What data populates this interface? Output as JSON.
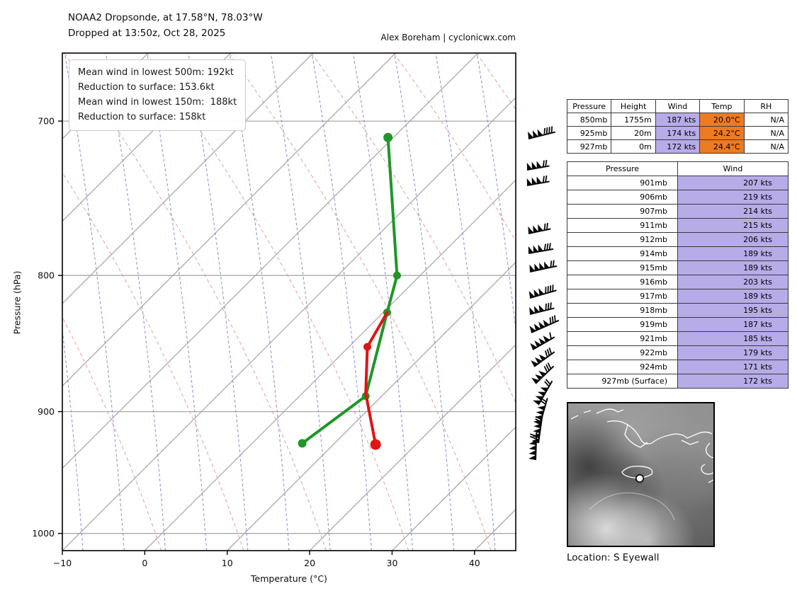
{
  "header": {
    "title_line1": "NOAA2 Dropsonde, at 17.58°N, 78.03°W",
    "title_line2": "Dropped at 13:50z, Oct 28, 2025",
    "credit": "Alex Boreham | cyclonicwx.com"
  },
  "chart_data": {
    "type": "line",
    "subtype": "skew-t-log-p-sounding",
    "xlabel": "Temperature (°C)",
    "ylabel": "Pressure (hPa)",
    "xlim": [
      -10,
      45
    ],
    "plim": [
      1015,
      660
    ],
    "x_ticks": [
      -10,
      0,
      10,
      20,
      30,
      40
    ],
    "p_ticks": [
      700,
      800,
      900,
      1000
    ],
    "grid": "on: gray 45-deg isotherms, red dashed dry adiabats, blue dashed moist adiabats, horizontal isobars",
    "grid_colors": {
      "isotherm": "#a9a9a9",
      "isobar": "#a9a9a9",
      "dry_adiabat": "#e59c9c",
      "moist_adiabat": "#8585cf"
    },
    "series": [
      {
        "name": "dewpoint-trace",
        "color": "#1e9628",
        "points": [
          [
            29.5,
            710
          ],
          [
            30.6,
            800
          ],
          [
            29.4,
            826
          ],
          [
            26.8,
            888
          ],
          [
            19.1,
            925
          ]
        ],
        "marker_radius": [
          6.5,
          5.5,
          5.5,
          5.5,
          6
        ]
      },
      {
        "name": "temperature-trace",
        "color": "#e11414",
        "points": [
          [
            29.4,
            826
          ],
          [
            27.0,
            851
          ],
          [
            26.8,
            886
          ],
          [
            28.0,
            926
          ]
        ],
        "marker_radius": [
          0,
          5.5,
          0,
          7.5
        ]
      }
    ],
    "info_box": {
      "lines": [
        "Mean wind in lowest 500m: 192kt",
        "Reduction to surface: 153.6kt",
        "Mean wind in lowest 150m:  188kt",
        "Reduction to surface: 158kt"
      ]
    }
  },
  "summary_table": {
    "headers": [
      "Pressure",
      "Height",
      "Wind",
      "Temp",
      "RH"
    ],
    "rows": [
      [
        "850mb",
        "1755m",
        "187 kts",
        "20.0°C",
        "N/A"
      ],
      [
        "925mb",
        "20m",
        "174 kts",
        "24.2°C",
        "N/A"
      ],
      [
        "927mb",
        "0m",
        "172 kts",
        "24.4°C",
        "N/A"
      ]
    ],
    "wind_col_bg": "#b7ace8",
    "temp_col_bg": "#ee7b20"
  },
  "wind_table": {
    "headers": [
      "Pressure",
      "Wind"
    ],
    "rows": [
      [
        "901mb",
        "207 kts"
      ],
      [
        "906mb",
        "219 kts"
      ],
      [
        "907mb",
        "214 kts"
      ],
      [
        "911mb",
        "215 kts"
      ],
      [
        "912mb",
        "206 kts"
      ],
      [
        "914mb",
        "189 kts"
      ],
      [
        "915mb",
        "189 kts"
      ],
      [
        "916mb",
        "203 kts"
      ],
      [
        "917mb",
        "189 kts"
      ],
      [
        "918mb",
        "195 kts"
      ],
      [
        "919mb",
        "187 kts"
      ],
      [
        "921mb",
        "185 kts"
      ],
      [
        "922mb",
        "179 kts"
      ],
      [
        "924mb",
        "171 kts"
      ],
      [
        "927mb (Surface)",
        "172 kts"
      ]
    ],
    "wind_col_bg": "#b7ace8"
  },
  "wind_barbs": {
    "color": "#0a0a0a",
    "items": [
      [
        746,
        196,
        -14,
        3,
        4
      ],
      [
        744,
        240,
        -10,
        3,
        2
      ],
      [
        744,
        262,
        -10,
        3,
        2
      ],
      [
        746,
        330,
        -12,
        3,
        2
      ],
      [
        746,
        358,
        -10,
        3,
        3
      ],
      [
        748,
        384,
        -12,
        4,
        2
      ],
      [
        748,
        421,
        -16,
        3,
        4
      ],
      [
        748,
        444,
        -14,
        3,
        3
      ],
      [
        750,
        470,
        -24,
        4,
        3
      ],
      [
        752,
        494,
        -30,
        4,
        1
      ],
      [
        754,
        518,
        -36,
        3,
        3
      ],
      [
        756,
        542,
        -44,
        3,
        3
      ],
      [
        760,
        572,
        -60,
        4,
        2
      ],
      [
        762,
        600,
        -74,
        4,
        2
      ],
      [
        760,
        626,
        -82,
        4,
        2
      ],
      [
        756,
        650,
        -88,
        4,
        2
      ]
    ]
  },
  "satellite": {
    "caption": "Location: S Eyewall",
    "visible_features": [
      "cuba-coastline",
      "jamaica-outline",
      "hispaniola-coastline",
      "dropsonde-location-dot"
    ]
  }
}
